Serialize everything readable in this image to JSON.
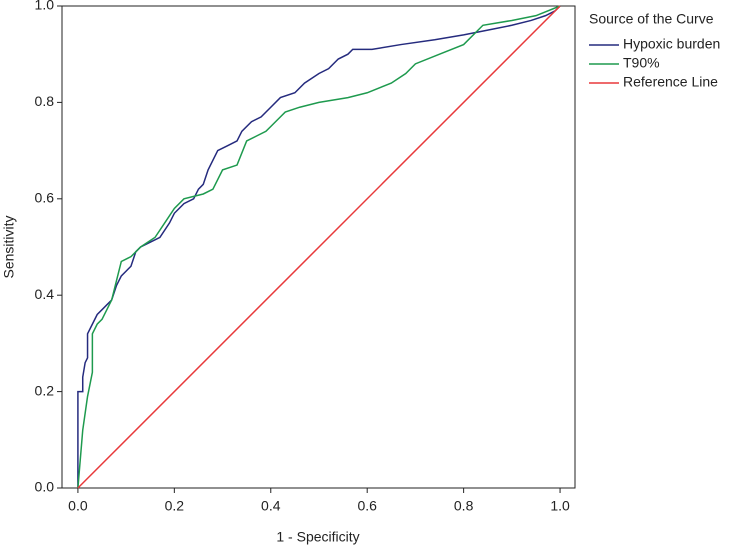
{
  "chart_data": {
    "type": "line",
    "xlabel": "1 - Specificity",
    "ylabel": "Sensitivity",
    "legend_title": "Source of the Curve",
    "legend": "right-outside",
    "xlim": [
      -0.033,
      1.031
    ],
    "ylim": [
      0,
      1
    ],
    "xticks": [
      {
        "value": 0,
        "label": "0.0"
      },
      0.2,
      0.4,
      0.6,
      0.8,
      {
        "value": 1,
        "label": "1.0"
      }
    ],
    "yticks": [
      {
        "value": 0,
        "label": "0.0"
      },
      0.2,
      0.4,
      0.6,
      0.8,
      {
        "value": 1,
        "label": "1.0"
      }
    ],
    "series": [
      {
        "name": "Hypoxic burden",
        "color": "#252b7e",
        "x": [
          0,
          0,
          0.01,
          0.01,
          0.015,
          0.02,
          0.02,
          0.03,
          0.04,
          0.05,
          0.06,
          0.07,
          0.08,
          0.09,
          0.1,
          0.11,
          0.12,
          0.13,
          0.15,
          0.17,
          0.19,
          0.2,
          0.22,
          0.24,
          0.25,
          0.26,
          0.27,
          0.29,
          0.31,
          0.33,
          0.34,
          0.36,
          0.38,
          0.4,
          0.42,
          0.45,
          0.47,
          0.5,
          0.52,
          0.54,
          0.56,
          0.57,
          0.61,
          0.67,
          0.74,
          0.8,
          0.85,
          0.9,
          0.94,
          0.97,
          0.99,
          1
        ],
        "values": [
          0,
          0.2,
          0.2,
          0.23,
          0.26,
          0.27,
          0.32,
          0.34,
          0.36,
          0.37,
          0.38,
          0.39,
          0.42,
          0.44,
          0.45,
          0.46,
          0.49,
          0.5,
          0.51,
          0.52,
          0.55,
          0.57,
          0.59,
          0.6,
          0.62,
          0.63,
          0.66,
          0.7,
          0.71,
          0.72,
          0.74,
          0.76,
          0.77,
          0.79,
          0.81,
          0.82,
          0.84,
          0.86,
          0.87,
          0.89,
          0.9,
          0.91,
          0.91,
          0.92,
          0.93,
          0.94,
          0.95,
          0.96,
          0.97,
          0.98,
          0.99,
          1
        ]
      },
      {
        "name": "T90%",
        "color": "#1e9a4e",
        "x": [
          0,
          0.01,
          0.02,
          0.03,
          0.03,
          0.04,
          0.05,
          0.06,
          0.07,
          0.08,
          0.09,
          0.11,
          0.13,
          0.16,
          0.18,
          0.2,
          0.22,
          0.26,
          0.28,
          0.3,
          0.33,
          0.35,
          0.37,
          0.39,
          0.4,
          0.42,
          0.43,
          0.46,
          0.5,
          0.56,
          0.6,
          0.65,
          0.68,
          0.7,
          0.75,
          0.8,
          0.84,
          0.9,
          0.95,
          1
        ],
        "values": [
          0,
          0.12,
          0.19,
          0.24,
          0.32,
          0.34,
          0.35,
          0.37,
          0.39,
          0.43,
          0.47,
          0.48,
          0.5,
          0.52,
          0.55,
          0.58,
          0.6,
          0.61,
          0.62,
          0.66,
          0.67,
          0.72,
          0.73,
          0.74,
          0.75,
          0.77,
          0.78,
          0.79,
          0.8,
          0.81,
          0.82,
          0.84,
          0.86,
          0.88,
          0.9,
          0.92,
          0.96,
          0.97,
          0.98,
          1
        ]
      },
      {
        "name": "Reference Line",
        "color": "#e8393b",
        "x": [
          0,
          1
        ],
        "values": [
          0,
          1
        ]
      }
    ]
  }
}
